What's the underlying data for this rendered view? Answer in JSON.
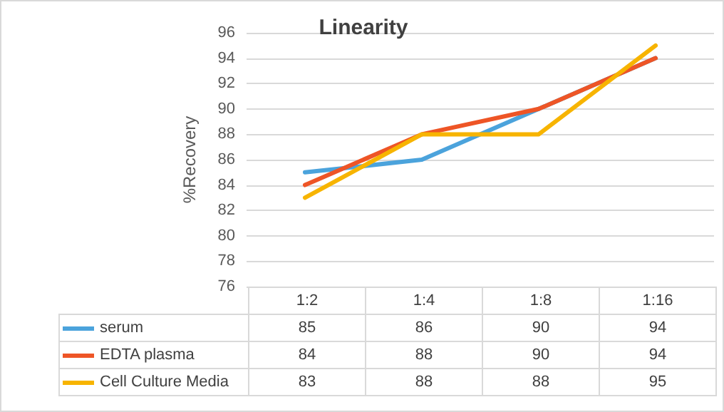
{
  "chart_data": {
    "type": "line",
    "title": "Linearity",
    "ylabel": "%Recovery",
    "categories": [
      "1:2",
      "1:4",
      "1:8",
      "1:16"
    ],
    "series": [
      {
        "name": "serum",
        "color": "#4ba3dc",
        "values": [
          85,
          86,
          90,
          94
        ]
      },
      {
        "name": "EDTA plasma",
        "color": "#ee5526",
        "values": [
          84,
          88,
          90,
          94
        ]
      },
      {
        "name": "Cell Culture Media",
        "color": "#f7b400",
        "values": [
          83,
          88,
          88,
          95
        ]
      }
    ],
    "ylim": [
      76,
      96
    ],
    "yticks": [
      76,
      78,
      80,
      82,
      84,
      86,
      88,
      90,
      92,
      94,
      96
    ],
    "grid": "y",
    "legend": "bottom",
    "data_labels": true,
    "marker": "none",
    "line_style": "solid"
  }
}
